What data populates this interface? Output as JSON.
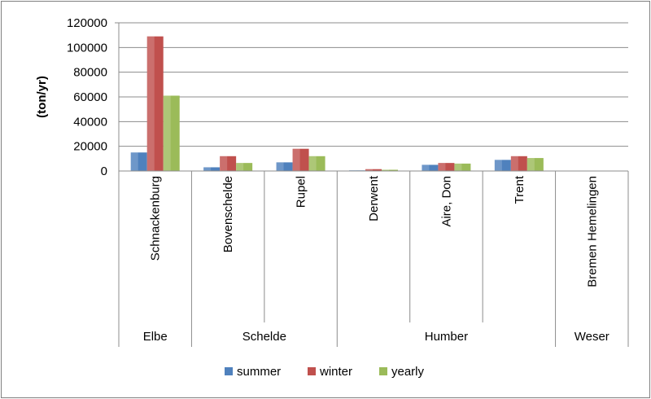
{
  "chart_data": {
    "type": "bar",
    "ylabel": "(ton/yr)",
    "ylim": [
      0,
      120000
    ],
    "yticks": [
      "0",
      "20000",
      "40000",
      "60000",
      "80000",
      "100000",
      "120000"
    ],
    "categories": [
      "Schnackenburg",
      "Bovenschelde",
      "Rupel",
      "Derwent",
      "Aire, Don",
      "Trent",
      "Bremen Hemelingen"
    ],
    "groups": [
      {
        "name": "Elbe",
        "span": 1
      },
      {
        "name": "Schelde",
        "span": 2
      },
      {
        "name": "Humber",
        "span": 3
      },
      {
        "name": "Weser",
        "span": 1
      }
    ],
    "series": [
      {
        "name": "summer",
        "color": "#4f81bd",
        "values": [
          15000,
          3000,
          7000,
          500,
          5000,
          9000,
          0
        ]
      },
      {
        "name": "winter",
        "color": "#c0504d",
        "values": [
          109000,
          12000,
          18000,
          1500,
          6500,
          12000,
          0
        ]
      },
      {
        "name": "yearly",
        "color": "#9bbb59",
        "values": [
          61000,
          6500,
          12000,
          1000,
          6000,
          10500,
          0
        ]
      }
    ],
    "legend_position": "bottom",
    "grid": true
  }
}
